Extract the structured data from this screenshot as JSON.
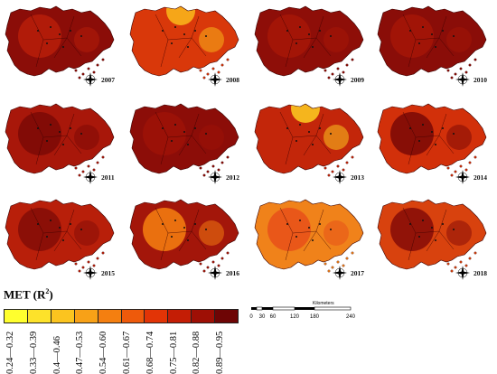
{
  "legend": {
    "title": "MET (R",
    "title_sup": "2",
    "title_close": ")",
    "bins": [
      {
        "label": "0.24—0.32",
        "color": "#ffff2e"
      },
      {
        "label": "0.33—0.39",
        "color": "#fde22a"
      },
      {
        "label": "0.4—0.46",
        "color": "#fbc41f"
      },
      {
        "label": "0.47—0.53",
        "color": "#f8a117"
      },
      {
        "label": "0.54—0.60",
        "color": "#f47f10"
      },
      {
        "label": "0.61—0.67",
        "color": "#ee5a0b"
      },
      {
        "label": "0.68—0.74",
        "color": "#e23406"
      },
      {
        "label": "0.75—0.81",
        "color": "#c41d05"
      },
      {
        "label": "0.82—0.88",
        "color": "#9e0f05"
      },
      {
        "label": "0.89—0.95",
        "color": "#6e0505"
      }
    ]
  },
  "scalebar": {
    "unit": "Kilometers",
    "ticks": [
      "0",
      "30",
      "60",
      "120",
      "180",
      "240"
    ]
  },
  "panels": [
    {
      "year": "2007",
      "main_color": "#8b0d08",
      "hotspot": "#b51d0a",
      "hotspot_level": "high"
    },
    {
      "year": "2008",
      "main_color": "#d9380a",
      "hotspot": "#f8b21a",
      "hotspot_level": "low"
    },
    {
      "year": "2009",
      "main_color": "#8e0e08",
      "hotspot": "#a51608",
      "hotspot_level": "high"
    },
    {
      "year": "2010",
      "main_color": "#8a0d08",
      "hotspot": "#a31508",
      "hotspot_level": "high"
    },
    {
      "year": "2011",
      "main_color": "#a8170a",
      "hotspot": "#7d0a06",
      "hotspot_level": "high"
    },
    {
      "year": "2012",
      "main_color": "#8c0d08",
      "hotspot": "#9c1208",
      "hotspot_level": "high"
    },
    {
      "year": "2013",
      "main_color": "#c3260a",
      "hotspot": "#fbc51f",
      "hotspot_level": "low"
    },
    {
      "year": "2014",
      "main_color": "#d2300a",
      "hotspot": "#7e0b06",
      "hotspot_level": "high"
    },
    {
      "year": "2015",
      "main_color": "#b81f0a",
      "hotspot": "#860d07",
      "hotspot_level": "high"
    },
    {
      "year": "2016",
      "main_color": "#a3160a",
      "hotspot": "#f27a10",
      "hotspot_level": "mid"
    },
    {
      "year": "2017",
      "main_color": "#f0821a",
      "hotspot": "#e8521a",
      "hotspot_level": "mid"
    },
    {
      "year": "2018",
      "main_color": "#d8420e",
      "hotspot": "#8a0e08",
      "hotspot_level": "high"
    }
  ]
}
